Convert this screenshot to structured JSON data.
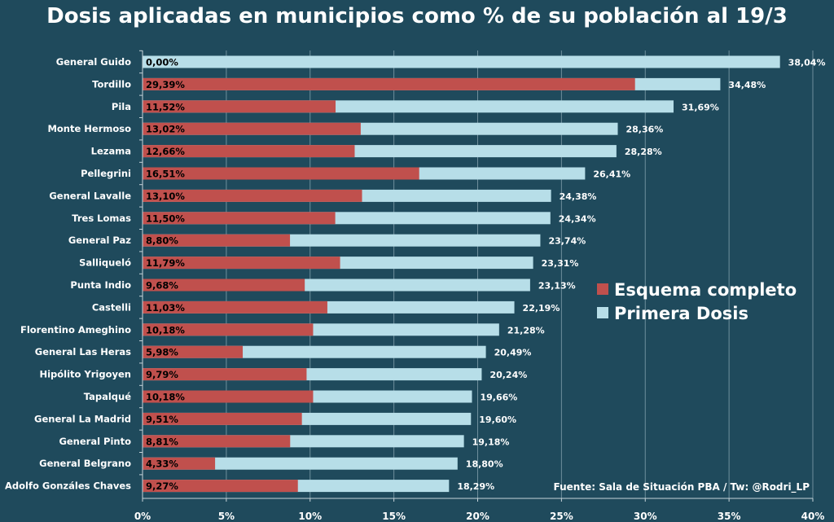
{
  "chart_data": {
    "type": "bar",
    "orientation": "horizontal",
    "title": "Dosis aplicadas en municipios como % de su población al 19/3",
    "categories": [
      "General Guido",
      "Tordillo",
      "Pila",
      "Monte Hermoso",
      "Lezama",
      "Pellegrini",
      "General Lavalle",
      "Tres Lomas",
      "General Paz",
      "Salliqueló",
      "Punta Indio",
      "Castelli",
      "Florentino Ameghino",
      "General Las Heras",
      "Hipólito Yrigoyen",
      "Tapalqué",
      "General La Madrid",
      "General Pinto",
      "General Belgrano",
      "Adolfo Gonzáles Chaves"
    ],
    "series": [
      {
        "name": "Esquema completo",
        "color": "#c0504d",
        "values": [
          0.0,
          29.39,
          11.52,
          13.02,
          12.66,
          16.51,
          13.1,
          11.5,
          8.8,
          11.79,
          9.68,
          11.03,
          10.18,
          5.98,
          9.79,
          10.18,
          9.51,
          8.81,
          4.33,
          9.27
        ],
        "labels": [
          "0,00%",
          "29,39%",
          "11,52%",
          "13,02%",
          "12,66%",
          "16,51%",
          "13,10%",
          "11,50%",
          "8,80%",
          "11,79%",
          "9,68%",
          "11,03%",
          "10,18%",
          "5,98%",
          "9,79%",
          "10,18%",
          "9,51%",
          "8,81%",
          "4,33%",
          "9,27%"
        ]
      },
      {
        "name": "Primera Dosis",
        "color": "#b7dee8",
        "values": [
          38.04,
          34.48,
          31.69,
          28.36,
          28.28,
          26.41,
          24.38,
          24.34,
          23.74,
          23.31,
          23.13,
          22.19,
          21.28,
          20.49,
          20.24,
          19.66,
          19.6,
          19.18,
          18.8,
          18.29
        ],
        "labels": [
          "38,04%",
          "34,48%",
          "31,69%",
          "28,36%",
          "28,28%",
          "26,41%",
          "24,38%",
          "24,34%",
          "23,74%",
          "23,31%",
          "23,13%",
          "22,19%",
          "21,28%",
          "20,49%",
          "20,24%",
          "19,66%",
          "19,60%",
          "19,18%",
          "18,80%",
          "18,29%"
        ]
      }
    ],
    "xlim": [
      0,
      40
    ],
    "xticks": [
      0,
      5,
      10,
      15,
      20,
      25,
      30,
      35,
      40
    ],
    "xtick_labels": [
      "0%",
      "5%",
      "10%",
      "15%",
      "20%",
      "25%",
      "30%",
      "35%",
      "40%"
    ],
    "grid": true,
    "legend_position": "right",
    "xlabel": "",
    "ylabel": ""
  },
  "source_note": "Fuente: Sala de Situación PBA / Tw: @Rodri_LP",
  "colors": {
    "background": "#1f4a5c",
    "grid": "#6f8f9c",
    "axis": "#c7d4da"
  }
}
